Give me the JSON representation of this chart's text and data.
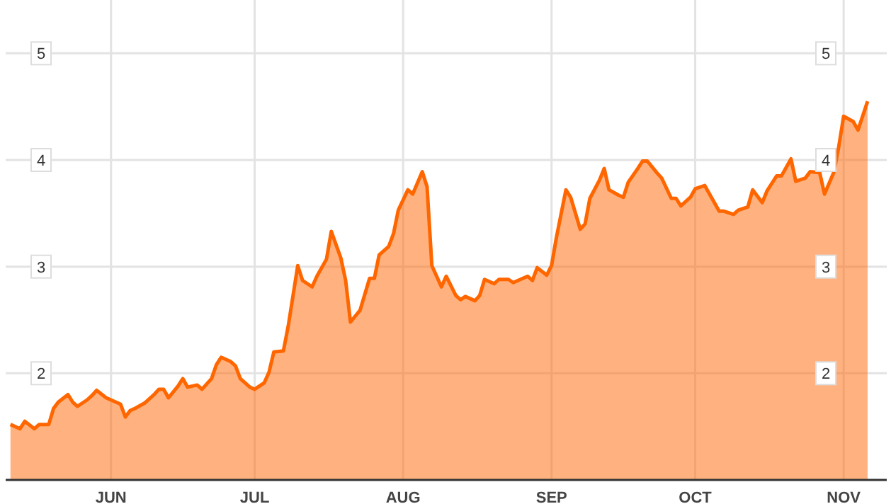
{
  "chart_data": {
    "type": "area",
    "x": [
      "--05-11",
      "--05-13",
      "--05-14",
      "--05-16",
      "--05-17",
      "--05-19",
      "--05-20",
      "--05-21",
      "--05-23",
      "--05-24",
      "--05-25",
      "--05-27",
      "--05-28",
      "--05-29",
      "--05-31",
      "--06-01",
      "--06-03",
      "--06-04",
      "--06-05",
      "--06-06",
      "--06-08",
      "--06-10",
      "--06-11",
      "--06-12",
      "--06-13",
      "--06-15",
      "--06-16",
      "--06-17",
      "--06-19",
      "--06-20",
      "--06-22",
      "--06-23",
      "--06-24",
      "--06-26",
      "--06-27",
      "--06-28",
      "--06-30",
      "--07-01",
      "--07-03",
      "--07-04",
      "--07-05",
      "--07-07",
      "--07-08",
      "--07-10",
      "--07-11",
      "--07-13",
      "--07-14",
      "--07-16",
      "--07-17",
      "--07-19",
      "--07-20",
      "--07-21",
      "--07-23",
      "--07-25",
      "--07-26",
      "--07-27",
      "--07-29",
      "--07-30",
      "--07-31",
      "--08-02",
      "--08-03",
      "--08-05",
      "--08-06",
      "--08-07",
      "--08-09",
      "--08-10",
      "--08-12",
      "--08-13",
      "--08-14",
      "--08-16",
      "--08-17",
      "--08-18",
      "--08-20",
      "--08-21",
      "--08-23",
      "--08-24",
      "--08-25",
      "--08-27",
      "--08-28",
      "--08-29",
      "--08-31",
      "--09-01",
      "--09-02",
      "--09-04",
      "--09-05",
      "--09-07",
      "--09-08",
      "--09-09",
      "--09-11",
      "--09-12",
      "--09-13",
      "--09-15",
      "--09-16",
      "--09-17",
      "--09-19",
      "--09-20",
      "--09-21",
      "--09-23",
      "--09-24",
      "--09-26",
      "--09-27",
      "--09-28",
      "--09-30",
      "--10-01",
      "--10-03",
      "--10-04",
      "--10-06",
      "--10-07",
      "--10-09",
      "--10-10",
      "--10-12",
      "--10-13",
      "--10-15",
      "--10-16",
      "--10-18",
      "--10-19",
      "--10-21",
      "--10-22",
      "--10-24",
      "--10-25",
      "--10-27",
      "--10-28",
      "--10-30",
      "--10-31",
      "--11-01",
      "--11-03",
      "--11-04",
      "--11-06"
    ],
    "series": [
      {
        "color": "#ff6600",
        "values": [
          1.52,
          1.48,
          1.55,
          1.48,
          1.52,
          1.52,
          1.67,
          1.73,
          1.8,
          1.73,
          1.69,
          1.75,
          1.79,
          1.84,
          1.77,
          1.75,
          1.71,
          1.59,
          1.65,
          1.67,
          1.72,
          1.8,
          1.85,
          1.85,
          1.77,
          1.88,
          1.95,
          1.87,
          1.89,
          1.85,
          1.95,
          2.08,
          2.15,
          2.11,
          2.07,
          1.95,
          1.87,
          1.85,
          1.91,
          2.01,
          2.2,
          2.21,
          2.44,
          3.01,
          2.87,
          2.81,
          2.91,
          3.07,
          3.33,
          3.08,
          2.87,
          2.48,
          2.59,
          2.89,
          2.89,
          3.11,
          3.19,
          3.31,
          3.53,
          3.72,
          3.68,
          3.89,
          3.75,
          3.01,
          2.81,
          2.91,
          2.73,
          2.69,
          2.72,
          2.68,
          2.73,
          2.88,
          2.84,
          2.88,
          2.88,
          2.85,
          2.87,
          2.91,
          2.87,
          2.99,
          2.92,
          3.01,
          3.27,
          3.72,
          3.65,
          3.35,
          3.4,
          3.64,
          3.81,
          3.92,
          3.72,
          3.67,
          3.65,
          3.79,
          3.92,
          3.99,
          3.99,
          3.88,
          3.83,
          3.64,
          3.64,
          3.57,
          3.65,
          3.73,
          3.76,
          3.68,
          3.52,
          3.52,
          3.49,
          3.53,
          3.56,
          3.72,
          3.6,
          3.71,
          3.85,
          3.85,
          4.01,
          3.8,
          3.83,
          3.89,
          3.88,
          3.68,
          3.89,
          4.13,
          4.41,
          4.36,
          4.28,
          4.55
        ]
      }
    ],
    "xlim": [
      "--05-10",
      "--11-10"
    ],
    "xticks": [
      {
        "value": "--06-01",
        "label": "JUN"
      },
      {
        "value": "--07-01",
        "label": "JUL"
      },
      {
        "value": "--08-01",
        "label": "AUG"
      },
      {
        "value": "--09-01",
        "label": "SEP"
      },
      {
        "value": "--10-01",
        "label": "OCT"
      },
      {
        "value": "--11-01",
        "label": "NOV"
      }
    ],
    "ylim": [
      1,
      5.5
    ],
    "yticks": [
      2,
      3,
      4,
      5
    ],
    "y2lim": [
      1,
      5.5
    ],
    "y2ticks": [
      2,
      3,
      4,
      5
    ],
    "grid": true,
    "legend": false
  }
}
